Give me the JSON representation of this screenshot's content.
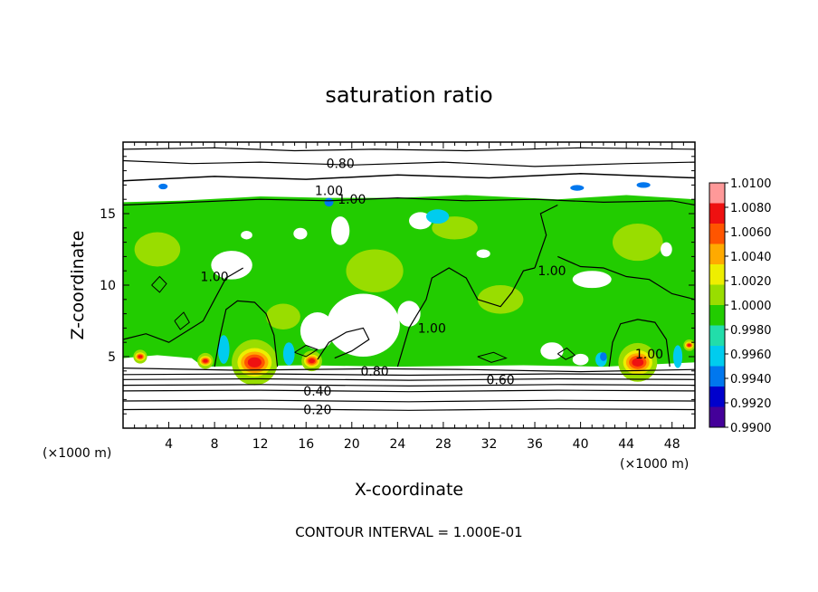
{
  "chart_data": {
    "type": "heatmap",
    "title": "saturation ratio",
    "xlabel": "X-coordinate",
    "ylabel": "Z-coordinate",
    "x_unit_left": "(×1000 m)",
    "x_unit_right": "(×1000 m)",
    "xlim": [
      0,
      50
    ],
    "ylim": [
      0,
      20
    ],
    "x_ticks": [
      4,
      8,
      12,
      16,
      20,
      24,
      28,
      32,
      36,
      40,
      44,
      48
    ],
    "y_ticks": [
      5,
      10,
      15
    ],
    "colorbar": {
      "levels": [
        "1.0100",
        "1.0080",
        "1.0060",
        "1.0040",
        "1.0020",
        "1.0000",
        "0.9980",
        "0.9960",
        "0.9940",
        "0.9920",
        "0.9900"
      ],
      "min": 0.99,
      "max": 1.01,
      "colors": [
        "#ff9999",
        "#ee1111",
        "#ff5500",
        "#ffaa00",
        "#eeee00",
        "#99dd00",
        "#22cc00",
        "#22ddaa",
        "#00ccee",
        "#0077ee",
        "#0000cc",
        "#440099"
      ]
    },
    "contour_labels": [
      {
        "text": "0.80",
        "x": 19.0,
        "z": 18.5
      },
      {
        "text": "1.00",
        "x": 18.0,
        "z": 16.6
      },
      {
        "text": "1.00",
        "x": 20.0,
        "z": 16.0
      },
      {
        "text": "1.00",
        "x": 8.0,
        "z": 10.6
      },
      {
        "text": "1.00",
        "x": 37.5,
        "z": 11.0
      },
      {
        "text": "1.00",
        "x": 27.0,
        "z": 7.0
      },
      {
        "text": "1.00",
        "x": 46.0,
        "z": 5.2
      },
      {
        "text": "0.80",
        "x": 22.0,
        "z": 4.0
      },
      {
        "text": "0.60",
        "x": 33.0,
        "z": 3.4
      },
      {
        "text": "0.40",
        "x": 17.0,
        "z": 2.6
      },
      {
        "text": "0.20",
        "x": 17.0,
        "z": 1.3
      }
    ],
    "contour_interval_text": "CONTOUR INTERVAL = 1.000E-01"
  }
}
